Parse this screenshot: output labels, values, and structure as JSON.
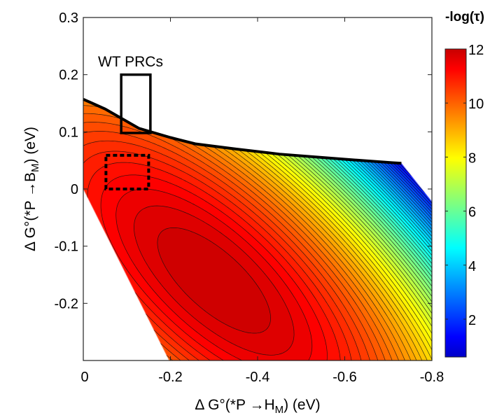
{
  "chart_data": {
    "type": "contour",
    "xlabel": {
      "prefix": "Δ G°(*P →H",
      "sub": "M",
      "suffix": ") (eV)"
    },
    "ylabel": {
      "prefix": "Δ G°(*P →B",
      "sub": "M",
      "suffix": ") (eV)"
    },
    "xlim": [
      0,
      -0.8
    ],
    "ylim": [
      -0.3,
      0.3
    ],
    "xticks": [
      0,
      -0.2,
      -0.4,
      -0.6,
      -0.8
    ],
    "xtick_labels": [
      "0",
      "-0.2",
      "-0.4",
      "-0.6",
      "-0.8"
    ],
    "yticks": [
      0.3,
      0.2,
      0.1,
      0,
      -0.1,
      -0.2
    ],
    "ytick_labels": [
      "0.3",
      "0.2",
      "0.1",
      "0",
      "-0.1",
      "-0.2"
    ],
    "colorbar": {
      "title": "-log(τ)",
      "range": [
        0.6,
        12
      ],
      "ticks": [
        2,
        4,
        6,
        8,
        10,
        12
      ],
      "tick_labels": [
        "2",
        "4",
        "6",
        "8",
        "10",
        "12"
      ],
      "colormap": "jet"
    },
    "surface": {
      "peak_value": 12,
      "peak_location": [
        -0.3,
        -0.16
      ],
      "contour_step": 0.2,
      "value_range": [
        1,
        12
      ]
    },
    "domain_boundary": [
      [
        0,
        0.157
      ],
      [
        -0.05,
        0.14
      ],
      [
        -0.128,
        0.106
      ],
      [
        -0.2,
        0.09
      ],
      [
        -0.257,
        0.079
      ],
      [
        -0.35,
        0.07
      ],
      [
        -0.45,
        0.061
      ],
      [
        -0.6,
        0.052
      ],
      [
        -0.71,
        0.046
      ],
      [
        -0.73,
        0.045
      ],
      [
        -0.8,
        -0.022
      ],
      [
        -0.8,
        -0.3
      ],
      [
        -0.197,
        -0.3
      ],
      [
        0,
        0
      ]
    ],
    "annotations": [
      {
        "type": "box",
        "style": "solid",
        "label": "WT PRCs",
        "x": [
          -0.087,
          -0.154
        ],
        "y": [
          0.098,
          0.2
        ]
      },
      {
        "type": "box",
        "style": "dashed",
        "x": [
          -0.052,
          -0.15
        ],
        "y": [
          0.0,
          0.059
        ]
      }
    ],
    "grid": false,
    "legend": "none"
  }
}
